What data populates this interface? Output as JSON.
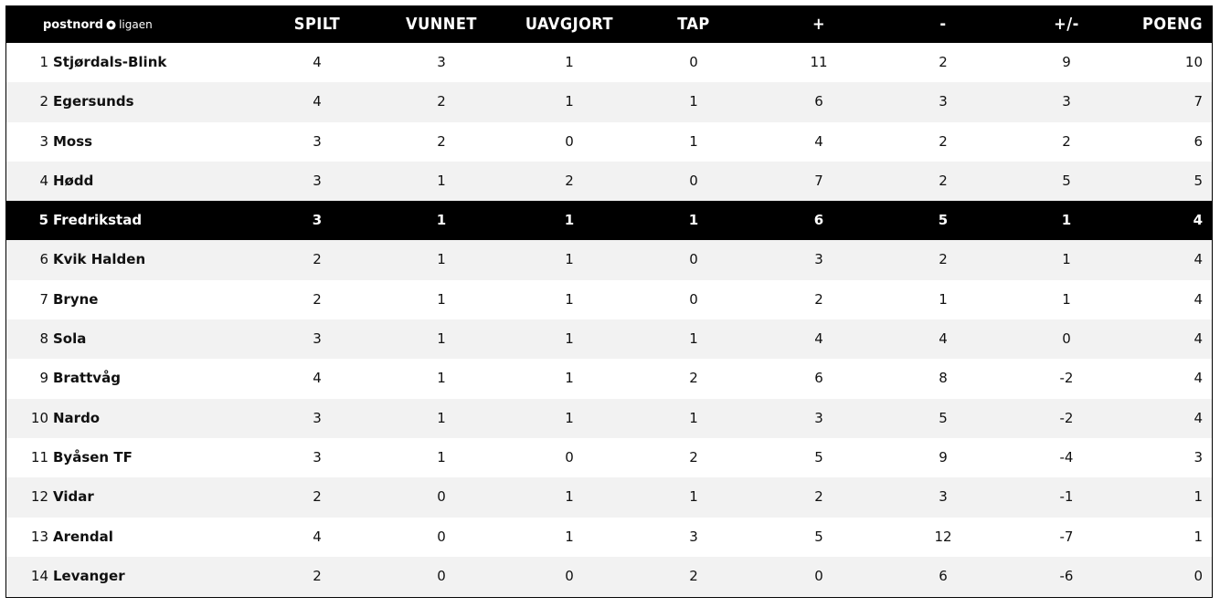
{
  "logo": {
    "brand": "postnord",
    "league": "ligaen",
    "icon": "soccer-ball-icon"
  },
  "columns": [
    "SPILT",
    "VUNNET",
    "UAVGJORT",
    "TAP",
    "+",
    "-",
    "+/-",
    "POENG"
  ],
  "highlight_color": "#000000",
  "rows": [
    {
      "rank": "1",
      "team": "Stjørdals-Blink",
      "spilt": "4",
      "vunnet": "3",
      "uavgjort": "1",
      "tap": "0",
      "plus": "11",
      "minus": "2",
      "diff": "9",
      "poeng": "10"
    },
    {
      "rank": "2",
      "team": "Egersunds",
      "spilt": "4",
      "vunnet": "2",
      "uavgjort": "1",
      "tap": "1",
      "plus": "6",
      "minus": "3",
      "diff": "3",
      "poeng": "7"
    },
    {
      "rank": "3",
      "team": "Moss",
      "spilt": "3",
      "vunnet": "2",
      "uavgjort": "0",
      "tap": "1",
      "plus": "4",
      "minus": "2",
      "diff": "2",
      "poeng": "6"
    },
    {
      "rank": "4",
      "team": "Hødd",
      "spilt": "3",
      "vunnet": "1",
      "uavgjort": "2",
      "tap": "0",
      "plus": "7",
      "minus": "2",
      "diff": "5",
      "poeng": "5"
    },
    {
      "rank": "5",
      "team": "Fredrikstad",
      "spilt": "3",
      "vunnet": "1",
      "uavgjort": "1",
      "tap": "1",
      "plus": "6",
      "minus": "5",
      "diff": "1",
      "poeng": "4",
      "highlighted": true
    },
    {
      "rank": "6",
      "team": "Kvik Halden",
      "spilt": "2",
      "vunnet": "1",
      "uavgjort": "1",
      "tap": "0",
      "plus": "3",
      "minus": "2",
      "diff": "1",
      "poeng": "4"
    },
    {
      "rank": "7",
      "team": "Bryne",
      "spilt": "2",
      "vunnet": "1",
      "uavgjort": "1",
      "tap": "0",
      "plus": "2",
      "minus": "1",
      "diff": "1",
      "poeng": "4"
    },
    {
      "rank": "8",
      "team": "Sola",
      "spilt": "3",
      "vunnet": "1",
      "uavgjort": "1",
      "tap": "1",
      "plus": "4",
      "minus": "4",
      "diff": "0",
      "poeng": "4"
    },
    {
      "rank": "9",
      "team": "Brattvåg",
      "spilt": "4",
      "vunnet": "1",
      "uavgjort": "1",
      "tap": "2",
      "plus": "6",
      "minus": "8",
      "diff": "-2",
      "poeng": "4"
    },
    {
      "rank": "10",
      "team": "Nardo",
      "spilt": "3",
      "vunnet": "1",
      "uavgjort": "1",
      "tap": "1",
      "plus": "3",
      "minus": "5",
      "diff": "-2",
      "poeng": "4"
    },
    {
      "rank": "11",
      "team": "Byåsen TF",
      "spilt": "3",
      "vunnet": "1",
      "uavgjort": "0",
      "tap": "2",
      "plus": "5",
      "minus": "9",
      "diff": "-4",
      "poeng": "3"
    },
    {
      "rank": "12",
      "team": "Vidar",
      "spilt": "2",
      "vunnet": "0",
      "uavgjort": "1",
      "tap": "1",
      "plus": "2",
      "minus": "3",
      "diff": "-1",
      "poeng": "1"
    },
    {
      "rank": "13",
      "team": "Arendal",
      "spilt": "4",
      "vunnet": "0",
      "uavgjort": "1",
      "tap": "3",
      "plus": "5",
      "minus": "12",
      "diff": "-7",
      "poeng": "1"
    },
    {
      "rank": "14",
      "team": "Levanger",
      "spilt": "2",
      "vunnet": "0",
      "uavgjort": "0",
      "tap": "2",
      "plus": "0",
      "minus": "6",
      "diff": "-6",
      "poeng": "0"
    }
  ]
}
